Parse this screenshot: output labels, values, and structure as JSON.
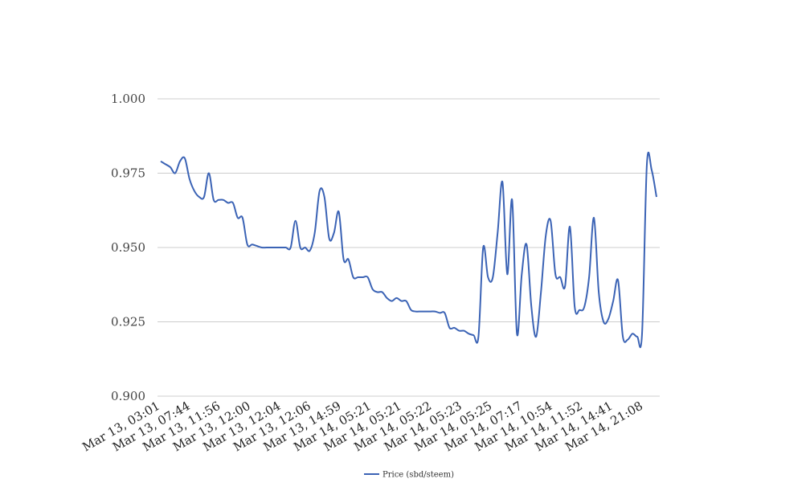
{
  "chart_data": {
    "type": "line",
    "title": "",
    "xlabel": "",
    "ylabel": "",
    "ylim": [
      0.9,
      1.0
    ],
    "y_ticks": [
      "0.900",
      "0.925",
      "0.950",
      "0.975",
      "1.000"
    ],
    "x_tick_labels": [
      "Mar 13, 03:01",
      "Mar 13, 07:44",
      "Mar 13, 11:56",
      "Mar 13, 12:00",
      "Mar 13, 12:04",
      "Mar 13, 12:06",
      "Mar 13, 14:59",
      "Mar 14, 05:21",
      "Mar 14, 05:21",
      "Mar 14, 05:22",
      "Mar 14, 05:23",
      "Mar 14, 05:25",
      "Mar 14, 07:17",
      "Mar 14, 10:54",
      "Mar 14, 11:52",
      "Mar 14, 14:41",
      "Mar 14, 21:08"
    ],
    "grid": true,
    "legend_position": "bottom",
    "series": [
      {
        "name": "Price (sbd/steem)",
        "color": "#3b63b5",
        "values": [
          0.979,
          0.978,
          0.977,
          0.975,
          0.979,
          0.98,
          0.973,
          0.969,
          0.967,
          0.967,
          0.975,
          0.966,
          0.966,
          0.966,
          0.965,
          0.965,
          0.96,
          0.96,
          0.951,
          0.951,
          0.9505,
          0.95,
          0.95,
          0.95,
          0.95,
          0.95,
          0.95,
          0.95,
          0.959,
          0.95,
          0.95,
          0.949,
          0.955,
          0.969,
          0.967,
          0.953,
          0.955,
          0.962,
          0.946,
          0.946,
          0.94,
          0.94,
          0.94,
          0.94,
          0.936,
          0.935,
          0.935,
          0.933,
          0.932,
          0.933,
          0.932,
          0.932,
          0.929,
          0.9285,
          0.9285,
          0.9285,
          0.9285,
          0.9285,
          0.928,
          0.928,
          0.923,
          0.923,
          0.922,
          0.922,
          0.921,
          0.9205,
          0.92,
          0.95,
          0.94,
          0.94,
          0.955,
          0.972,
          0.941,
          0.966,
          0.921,
          0.941,
          0.951,
          0.93,
          0.92,
          0.935,
          0.954,
          0.959,
          0.941,
          0.94,
          0.937,
          0.957,
          0.93,
          0.929,
          0.93,
          0.94,
          0.96,
          0.935,
          0.925,
          0.926,
          0.932,
          0.939,
          0.92,
          0.919,
          0.921,
          0.92,
          0.921,
          0.978,
          0.976,
          0.967
        ]
      }
    ]
  }
}
